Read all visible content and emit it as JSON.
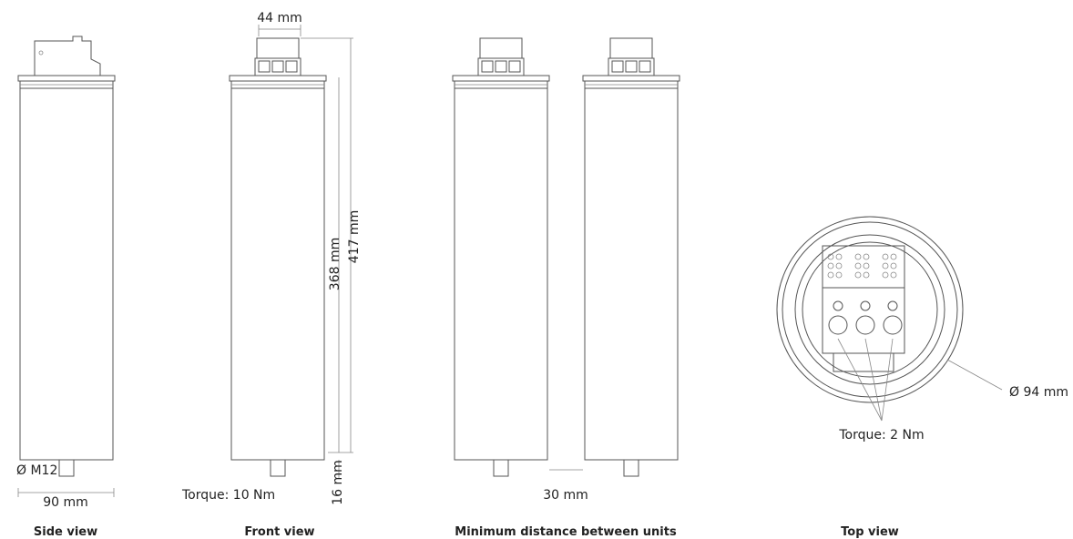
{
  "views": [
    {
      "caption": "Side view",
      "labels": [
        "Ø M12",
        "90 mm"
      ]
    },
    {
      "caption": "Front view",
      "labels": [
        "44 mm",
        "368 mm",
        "417 mm",
        "16 mm",
        "Torque: 10 Nm"
      ]
    },
    {
      "caption": "Minimum distance between units",
      "labels": [
        "30 mm"
      ]
    },
    {
      "caption": "Top view",
      "labels": [
        "Ø 94 mm",
        "Torque: 2 Nm"
      ]
    }
  ]
}
